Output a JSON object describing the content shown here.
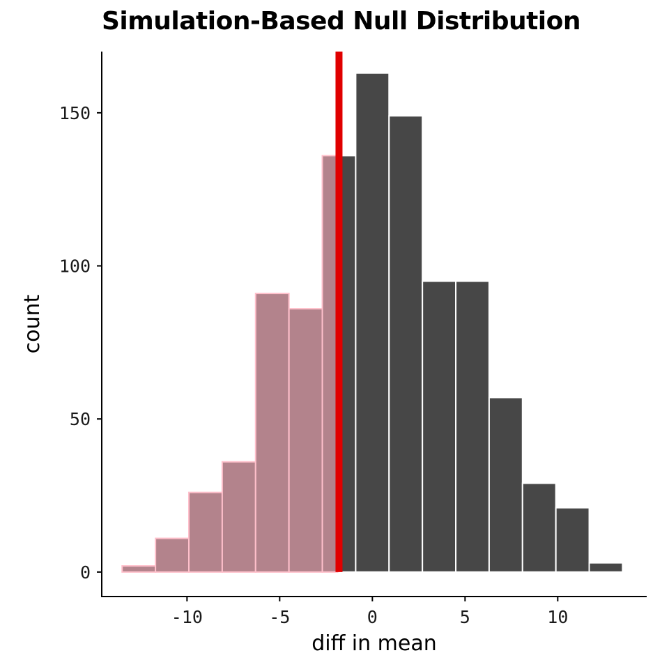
{
  "chart_data": {
    "type": "bar",
    "subtype": "histogram",
    "title": "Simulation-Based Null Distribution",
    "xlabel": "diff in mean",
    "ylabel": "count",
    "xlim": [
      -14.6,
      14.8
    ],
    "ylim": [
      -8,
      170
    ],
    "xticks": [
      -10,
      -5,
      0,
      5,
      10
    ],
    "xtick_labels": [
      "-10",
      "-5",
      "0",
      "5",
      "10"
    ],
    "yticks": [
      0,
      50,
      100,
      150
    ],
    "ytick_labels": [
      "0",
      "50",
      "100",
      "150"
    ],
    "bins": [
      {
        "x0": -13.5,
        "x1": -11.7,
        "count": 2,
        "shaded": true
      },
      {
        "x0": -11.7,
        "x1": -9.9,
        "count": 11,
        "shaded": true
      },
      {
        "x0": -9.9,
        "x1": -8.1,
        "count": 26,
        "shaded": true
      },
      {
        "x0": -8.1,
        "x1": -6.3,
        "count": 36,
        "shaded": true
      },
      {
        "x0": -6.3,
        "x1": -4.5,
        "count": 91,
        "shaded": true
      },
      {
        "x0": -4.5,
        "x1": -2.7,
        "count": 86,
        "shaded": true
      },
      {
        "x0": -2.7,
        "x1": -1.8,
        "count": 136,
        "shaded": true
      },
      {
        "x0": -1.8,
        "x1": -0.9,
        "count": 136,
        "shaded": false
      },
      {
        "x0": -0.9,
        "x1": 0.9,
        "count": 163,
        "shaded": false
      },
      {
        "x0": 0.9,
        "x1": 2.7,
        "count": 149,
        "shaded": false
      },
      {
        "x0": 2.7,
        "x1": 4.5,
        "count": 95,
        "shaded": false
      },
      {
        "x0": 4.5,
        "x1": 6.3,
        "count": 95,
        "shaded": false
      },
      {
        "x0": 6.3,
        "x1": 8.1,
        "count": 57,
        "shaded": false
      },
      {
        "x0": 8.1,
        "x1": 9.9,
        "count": 29,
        "shaded": false
      },
      {
        "x0": 9.9,
        "x1": 11.7,
        "count": 21,
        "shaded": false
      },
      {
        "x0": 11.7,
        "x1": 13.5,
        "count": 3,
        "shaded": false
      }
    ],
    "observed_statistic": -1.8,
    "colors": {
      "bar_fill": "#474747",
      "shaded_fill": "#b3838c",
      "shaded_outline": "#ffc0cb",
      "bar_outline": "#ffffff",
      "observed_line": "#e00000",
      "axis": "#000000"
    }
  }
}
